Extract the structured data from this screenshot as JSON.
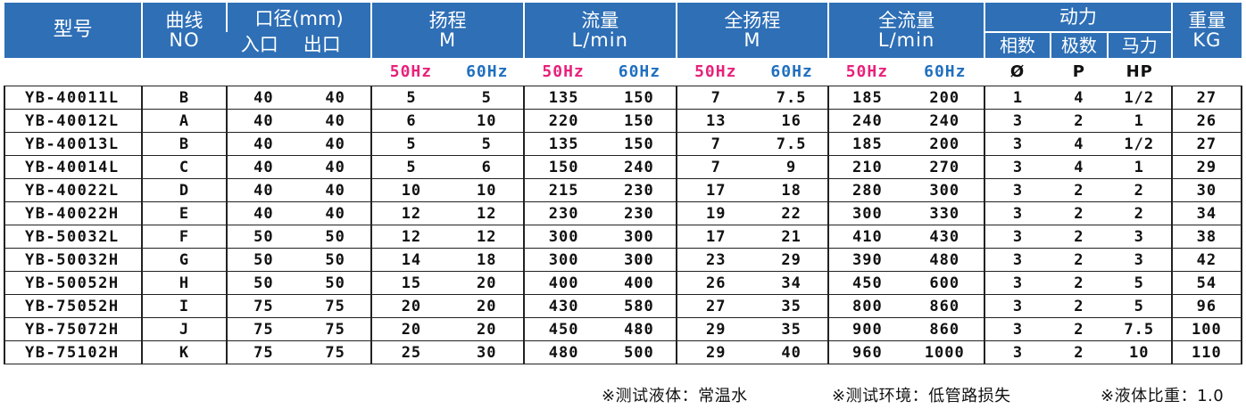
{
  "header": {
    "model": "型号",
    "curve_cn": "曲线",
    "curve_en": "NO",
    "caliber": "口径(mm)",
    "inlet": "入口",
    "outlet": "出口",
    "head_cn": "扬程",
    "head_unit": "M",
    "flow_cn": "流量",
    "flow_unit": "L/min",
    "total_head_cn": "全扬程",
    "total_head_unit": "M",
    "total_flow_cn": "全流量",
    "total_flow_unit": "L/min",
    "power": "动力",
    "phase": "相数",
    "poles": "极数",
    "horsepower": "马力",
    "weight_cn": "重量",
    "weight_unit": "KG"
  },
  "subheader": {
    "hz50": "50Hz",
    "hz60": "60Hz",
    "phase_symbol": "Ø",
    "poles_symbol": "P",
    "hp_symbol": "HP"
  },
  "colors": {
    "header_bg": "#2e6fb6",
    "hz50": "#e8217a",
    "hz60": "#1f6fbf"
  },
  "rows": [
    [
      "YB-40011L",
      "B",
      "40",
      "40",
      "5",
      "5",
      "135",
      "150",
      "7",
      "7.5",
      "185",
      "200",
      "1",
      "4",
      "1/2",
      "27"
    ],
    [
      "YB-40012L",
      "A",
      "40",
      "40",
      "6",
      "10",
      "220",
      "150",
      "13",
      "16",
      "240",
      "240",
      "3",
      "2",
      "1",
      "26"
    ],
    [
      "YB-40013L",
      "B",
      "40",
      "40",
      "5",
      "5",
      "135",
      "150",
      "7",
      "7.5",
      "185",
      "200",
      "3",
      "4",
      "1/2",
      "27"
    ],
    [
      "YB-40014L",
      "C",
      "40",
      "40",
      "5",
      "6",
      "150",
      "240",
      "7",
      "9",
      "210",
      "270",
      "3",
      "4",
      "1",
      "29"
    ],
    [
      "YB-40022L",
      "D",
      "40",
      "40",
      "10",
      "10",
      "215",
      "230",
      "17",
      "18",
      "280",
      "300",
      "3",
      "2",
      "2",
      "30"
    ],
    [
      "YB-40022H",
      "E",
      "40",
      "40",
      "12",
      "12",
      "230",
      "230",
      "19",
      "22",
      "300",
      "330",
      "3",
      "2",
      "2",
      "34"
    ],
    [
      "YB-50032L",
      "F",
      "50",
      "50",
      "12",
      "12",
      "300",
      "300",
      "17",
      "21",
      "410",
      "430",
      "3",
      "2",
      "3",
      "38"
    ],
    [
      "YB-50032H",
      "G",
      "50",
      "50",
      "14",
      "18",
      "300",
      "300",
      "23",
      "29",
      "390",
      "480",
      "3",
      "2",
      "3",
      "42"
    ],
    [
      "YB-50052H",
      "H",
      "50",
      "50",
      "15",
      "20",
      "400",
      "400",
      "26",
      "34",
      "450",
      "600",
      "3",
      "2",
      "5",
      "54"
    ],
    [
      "YB-75052H",
      "I",
      "75",
      "75",
      "20",
      "20",
      "430",
      "580",
      "27",
      "35",
      "800",
      "860",
      "3",
      "2",
      "5",
      "96"
    ],
    [
      "YB-75072H",
      "J",
      "75",
      "75",
      "20",
      "20",
      "450",
      "480",
      "29",
      "35",
      "900",
      "860",
      "3",
      "2",
      "7.5",
      "100"
    ],
    [
      "YB-75102H",
      "K",
      "75",
      "75",
      "25",
      "30",
      "480",
      "500",
      "29",
      "40",
      "960",
      "1000",
      "3",
      "2",
      "10",
      "110"
    ]
  ],
  "footer": {
    "note_liquid": "※测试液体：常温水",
    "note_env": "※测试环境：低管路损失",
    "note_gravity": "※液体比重：1.0"
  }
}
